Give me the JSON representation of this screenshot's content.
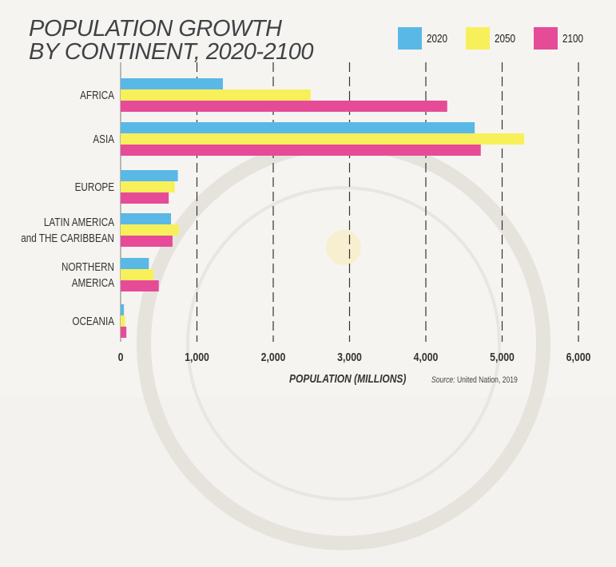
{
  "title_line1": "POPULATION GROWTH",
  "title_line2": "BY CONTINENT, 2020-2100",
  "source_prefix": "Source:",
  "source_text": "United Nation, 2019",
  "colors": {
    "2020": "#5ab8e6",
    "2050": "#f8f05a",
    "2100": "#e64b98",
    "grid": "#333333",
    "text": "#333333"
  },
  "chart_data": {
    "type": "bar",
    "orientation": "horizontal",
    "title": "POPULATION GROWTH BY CONTINENT, 2020-2100",
    "xlabel": "POPULATION (MILLIONS)",
    "ylabel": "",
    "xlim": [
      0,
      6000
    ],
    "xticks": [
      "0",
      "1,000",
      "2,000",
      "3,000",
      "4,000",
      "5,000",
      "6,000"
    ],
    "xtick_values": [
      0,
      1000,
      2000,
      3000,
      4000,
      5000,
      6000
    ],
    "grid": "vertical dashed",
    "legend_position": "top-right",
    "categories": [
      [
        "AFRICA"
      ],
      [
        "ASIA"
      ],
      [
        "EUROPE"
      ],
      [
        "LATIN AMERICA",
        "and THE CARIBBEAN"
      ],
      [
        "NORTHERN",
        "AMERICA"
      ],
      [
        "OCEANIA"
      ]
    ],
    "series": [
      {
        "name": "2020",
        "values": [
          1340,
          4640,
          750,
          660,
          370,
          43
        ]
      },
      {
        "name": "2050",
        "values": [
          2490,
          5290,
          710,
          760,
          430,
          57
        ]
      },
      {
        "name": "2100",
        "values": [
          4280,
          4720,
          630,
          680,
          500,
          75
        ]
      }
    ]
  }
}
